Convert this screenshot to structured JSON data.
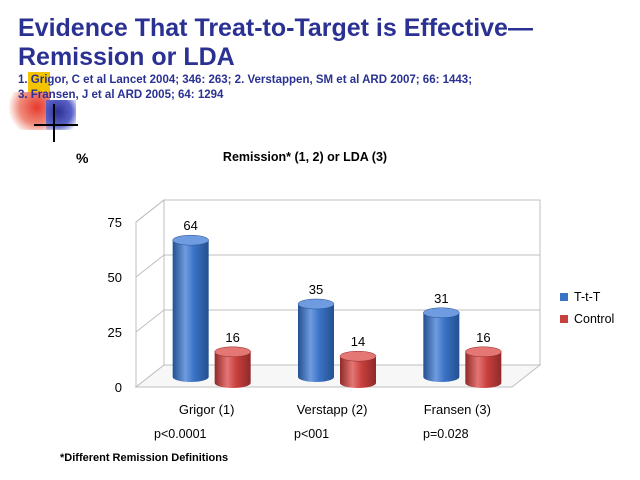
{
  "slide": {
    "title_line1": "Evidence That Treat-to-Target is Effective—",
    "title_line2": "Remission or LDA",
    "refs_line1": "1. Grigor, C et al Lancet 2004; 346: 263;  2. Verstappen, SM et al ARD 2007; 66: 1443;",
    "refs_line2": "3.  Fransen, J et al ARD 2005; 64: 1294",
    "ylabel": "%",
    "footnote": "*Different Remission Definitions",
    "pvalues": [
      "p<0.0001",
      "p<001",
      "p=0.028"
    ]
  },
  "colors": {
    "title": "#2a3192",
    "ttt": "#3a72c4",
    "control": "#c8403e",
    "deco_yellow": "#f5c400",
    "deco_red": "#e63a2e",
    "deco_blue": "#2a3192"
  },
  "chart_data": {
    "type": "bar",
    "title": "Remission* (1, 2) or LDA (3)",
    "ylabel": "%",
    "categories": [
      "Grigor (1)",
      "Verstapp (2)",
      "Fransen (3)"
    ],
    "series": [
      {
        "name": "T-t-T",
        "values": [
          64,
          35,
          31
        ]
      },
      {
        "name": "Control",
        "values": [
          16,
          14,
          16
        ]
      }
    ],
    "yticks": [
      0,
      25,
      50,
      75
    ],
    "ylim": [
      0,
      75
    ],
    "data_labels": true,
    "legend": "right",
    "style": "3d-cylinder"
  }
}
